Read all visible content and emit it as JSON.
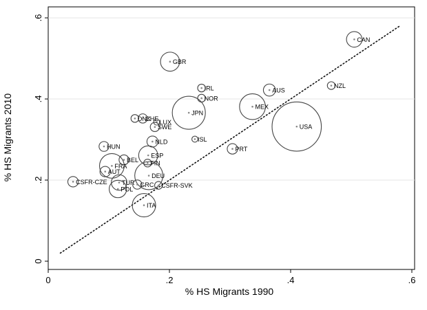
{
  "chart_data": {
    "type": "scatter",
    "title": "",
    "xlabel": "% HS Migrants 1990",
    "ylabel": "% HS Migrants 2010",
    "xlim": [
      0,
      0.6
    ],
    "ylim": [
      0,
      0.6
    ],
    "x_ticks": [
      0,
      0.2,
      0.4,
      0.6
    ],
    "y_ticks": [
      0,
      0.2,
      0.4,
      0.6
    ],
    "x_tick_labels": [
      "0",
      ".2",
      ".4",
      ".6"
    ],
    "y_tick_labels": [
      "0",
      ".2",
      ".4",
      ".6"
    ],
    "grid": "horizontal",
    "legend": "none",
    "marker": "hollow circles sized by weight",
    "reference_line": {
      "style": "dotted",
      "from": [
        0.02,
        0.02
      ],
      "to": [
        0.58,
        0.58
      ]
    },
    "points": [
      {
        "label": "CAN",
        "x": 0.505,
        "y": 0.547,
        "size": 2.0
      },
      {
        "label": "GBR",
        "x": 0.201,
        "y": 0.492,
        "size": 3.0
      },
      {
        "label": "IRL",
        "x": 0.253,
        "y": 0.427,
        "size": 0.5
      },
      {
        "label": "AUS",
        "x": 0.365,
        "y": 0.422,
        "size": 1.2
      },
      {
        "label": "NZL",
        "x": 0.467,
        "y": 0.433,
        "size": 0.5
      },
      {
        "label": "NOR",
        "x": 0.253,
        "y": 0.402,
        "size": 0.5
      },
      {
        "label": "MEX",
        "x": 0.337,
        "y": 0.381,
        "size": 5.5
      },
      {
        "label": "JPN",
        "x": 0.232,
        "y": 0.366,
        "size": 9.0
      },
      {
        "label": "USA",
        "x": 0.41,
        "y": 0.332,
        "size": 20.0
      },
      {
        "label": "DNK",
        "x": 0.143,
        "y": 0.352,
        "size": 0.5
      },
      {
        "label": "CHE",
        "x": 0.156,
        "y": 0.352,
        "size": 0.7
      },
      {
        "label": "LUX",
        "x": 0.179,
        "y": 0.343,
        "size": 0.3
      },
      {
        "label": "SWE",
        "x": 0.176,
        "y": 0.331,
        "size": 0.7
      },
      {
        "label": "ISL",
        "x": 0.242,
        "y": 0.301,
        "size": 0.3
      },
      {
        "label": "NLD",
        "x": 0.172,
        "y": 0.295,
        "size": 1.0
      },
      {
        "label": "HUN",
        "x": 0.092,
        "y": 0.283,
        "size": 0.8
      },
      {
        "label": "PRT",
        "x": 0.304,
        "y": 0.277,
        "size": 0.9
      },
      {
        "label": "ESP",
        "x": 0.165,
        "y": 0.261,
        "size": 3.0
      },
      {
        "label": "BEL",
        "x": 0.125,
        "y": 0.25,
        "size": 0.8
      },
      {
        "label": "FIN",
        "x": 0.164,
        "y": 0.242,
        "size": 0.5
      },
      {
        "label": "FRA",
        "x": 0.105,
        "y": 0.235,
        "size": 5.0
      },
      {
        "label": "AUT",
        "x": 0.094,
        "y": 0.221,
        "size": 0.9
      },
      {
        "label": "DEU",
        "x": 0.166,
        "y": 0.211,
        "size": 6.5
      },
      {
        "label": "CSFR-CZE",
        "x": 0.041,
        "y": 0.196,
        "size": 0.9
      },
      {
        "label": "TUR",
        "x": 0.117,
        "y": 0.194,
        "size": 2.0
      },
      {
        "label": "GRC",
        "x": 0.147,
        "y": 0.189,
        "size": 0.7
      },
      {
        "label": "CSFR-SVK",
        "x": 0.182,
        "y": 0.187,
        "size": 0.5
      },
      {
        "label": "POL",
        "x": 0.115,
        "y": 0.178,
        "size": 2.5
      },
      {
        "label": "ITA",
        "x": 0.158,
        "y": 0.138,
        "size": 4.5
      }
    ]
  }
}
